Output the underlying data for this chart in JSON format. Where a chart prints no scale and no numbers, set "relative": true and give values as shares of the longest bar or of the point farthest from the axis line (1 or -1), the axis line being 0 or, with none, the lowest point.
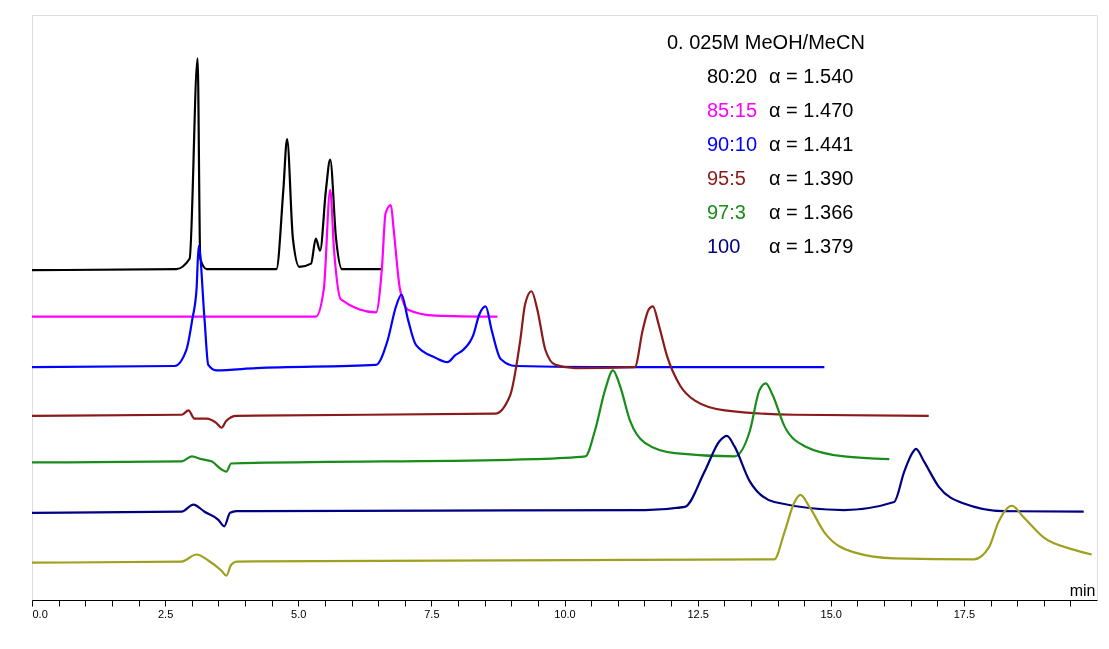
{
  "chart_data": {
    "type": "line",
    "relative": true,
    "legend_title": "0. 025M MeOH/MeCN",
    "xlabel": "min",
    "xlim": [
      0,
      20
    ],
    "xticks": [
      {
        "value": 0,
        "label": "0.0"
      },
      {
        "value": 0.5,
        "label": null
      },
      {
        "value": 1,
        "label": null
      },
      {
        "value": 1.5,
        "label": null
      },
      {
        "value": 2,
        "label": null
      },
      {
        "value": 2.5,
        "label": "2.5"
      },
      {
        "value": 3,
        "label": null
      },
      {
        "value": 3.5,
        "label": null
      },
      {
        "value": 4,
        "label": null
      },
      {
        "value": 4.5,
        "label": null
      },
      {
        "value": 5,
        "label": "5.0"
      },
      {
        "value": 5.5,
        "label": null
      },
      {
        "value": 6,
        "label": null
      },
      {
        "value": 6.5,
        "label": null
      },
      {
        "value": 7,
        "label": null
      },
      {
        "value": 7.5,
        "label": "7.5"
      },
      {
        "value": 8,
        "label": null
      },
      {
        "value": 8.5,
        "label": null
      },
      {
        "value": 9,
        "label": null
      },
      {
        "value": 9.5,
        "label": null
      },
      {
        "value": 10,
        "label": "10.0"
      },
      {
        "value": 10.5,
        "label": null
      },
      {
        "value": 11,
        "label": null
      },
      {
        "value": 11.5,
        "label": null
      },
      {
        "value": 12,
        "label": null
      },
      {
        "value": 12.5,
        "label": "12.5"
      },
      {
        "value": 13,
        "label": null
      },
      {
        "value": 13.5,
        "label": null
      },
      {
        "value": 14,
        "label": null
      },
      {
        "value": 14.5,
        "label": null
      },
      {
        "value": 15,
        "label": "15.0"
      },
      {
        "value": 15.5,
        "label": null
      },
      {
        "value": 16,
        "label": null
      },
      {
        "value": 16.5,
        "label": null
      },
      {
        "value": 17,
        "label": null
      },
      {
        "value": 17.5,
        "label": "17.5"
      },
      {
        "value": 18,
        "label": null
      },
      {
        "value": 18.5,
        "label": null
      },
      {
        "value": 19,
        "label": null
      },
      {
        "value": 19.5,
        "label": null
      }
    ],
    "tick_labels": "x",
    "grid": false,
    "legend": "top right",
    "marker": "none",
    "line_style": "solid",
    "annotations": [
      "α = 1.540",
      "α = 1.470",
      "α = 1.441",
      "α = 1.390",
      "α = 1.366",
      "α = 1.379"
    ],
    "series": [
      {
        "name": "80:20",
        "color": "#000000",
        "x": [
          0.0,
          2.71,
          2.96,
          3.11,
          3.16,
          3.28,
          4.59,
          4.72,
          4.79,
          4.9,
          5.02,
          5.24,
          5.33,
          5.41,
          5.52,
          5.6,
          5.71,
          5.82,
          6.57
        ],
        "values": [
          0.609,
          0.611,
          0.63,
          1.0,
          0.63,
          0.611,
          0.611,
          0.757,
          0.851,
          0.667,
          0.615,
          0.621,
          0.667,
          0.645,
          0.757,
          0.813,
          0.667,
          0.611,
          0.611
        ]
      },
      {
        "name": "85:15",
        "color": "#ff00ff",
        "x": [
          0.0,
          5.33,
          5.48,
          5.6,
          5.67,
          5.8,
          6.46,
          6.57,
          6.64,
          6.74,
          6.79,
          6.91,
          7.06,
          7.58,
          8.74
        ],
        "values": [
          0.523,
          0.523,
          0.574,
          0.757,
          0.649,
          0.555,
          0.531,
          0.611,
          0.714,
          0.729,
          0.686,
          0.574,
          0.536,
          0.525,
          0.523
        ]
      },
      {
        "name": "90:10",
        "color": "#0000ff",
        "x": [
          0.0,
          2.68,
          2.9,
          3.01,
          3.09,
          3.13,
          3.24,
          3.31,
          3.46,
          4.21,
          6.46,
          6.68,
          6.83,
          6.94,
          7.06,
          7.21,
          7.58,
          7.8,
          7.95,
          8.1,
          8.29,
          8.4,
          8.52,
          8.63,
          8.8,
          9.08,
          10.57,
          14.88
        ],
        "values": [
          0.43,
          0.432,
          0.462,
          0.518,
          0.574,
          0.654,
          0.518,
          0.434,
          0.424,
          0.428,
          0.434,
          0.48,
          0.54,
          0.564,
          0.518,
          0.471,
          0.447,
          0.439,
          0.452,
          0.462,
          0.49,
          0.527,
          0.542,
          0.499,
          0.445,
          0.432,
          0.43,
          0.43
        ]
      },
      {
        "name": "95:5",
        "color": "#8b1a1a",
        "x": [
          0.0,
          2.81,
          2.94,
          3.05,
          3.28,
          3.46,
          3.56,
          3.65,
          3.84,
          8.7,
          8.98,
          9.17,
          9.26,
          9.38,
          9.49,
          9.64,
          9.83,
          10.2,
          11.32,
          11.47,
          11.58,
          11.66,
          11.77,
          11.92,
          12.17,
          12.45,
          13.01,
          14.32,
          16.84
        ],
        "values": [
          0.34,
          0.342,
          0.35,
          0.335,
          0.335,
          0.327,
          0.318,
          0.331,
          0.34,
          0.344,
          0.378,
          0.48,
          0.546,
          0.57,
          0.536,
          0.462,
          0.434,
          0.428,
          0.43,
          0.499,
          0.536,
          0.542,
          0.508,
          0.452,
          0.396,
          0.368,
          0.35,
          0.342,
          0.34
        ]
      },
      {
        "name": "97:3",
        "color": "#1a8c1a",
        "x": [
          0.0,
          2.81,
          3.0,
          3.18,
          3.37,
          3.56,
          3.65,
          3.74,
          9.45,
          10.39,
          10.57,
          10.76,
          10.91,
          11.04,
          11.23,
          11.51,
          12.07,
          13.19,
          13.48,
          13.66,
          13.78,
          13.91,
          14.13,
          14.51,
          15.25,
          16.1
        ],
        "values": [
          0.254,
          0.256,
          0.265,
          0.26,
          0.256,
          0.241,
          0.237,
          0.252,
          0.26,
          0.265,
          0.312,
          0.387,
          0.424,
          0.396,
          0.331,
          0.29,
          0.271,
          0.265,
          0.312,
          0.387,
          0.4,
          0.378,
          0.321,
          0.284,
          0.265,
          0.26
        ]
      },
      {
        "name": "100",
        "color": "#000080",
        "x": [
          0.0,
          2.81,
          3.03,
          3.24,
          3.5,
          3.61,
          3.72,
          3.84,
          11.51,
          12.26,
          12.63,
          12.91,
          13.05,
          13.19,
          13.48,
          13.94,
          15.25,
          16.19,
          16.38,
          16.53,
          16.6,
          16.75,
          17.03,
          17.5,
          18.25,
          19.75
        ],
        "values": [
          0.161,
          0.163,
          0.176,
          0.163,
          0.148,
          0.136,
          0.161,
          0.164,
          0.166,
          0.172,
          0.237,
          0.293,
          0.303,
          0.284,
          0.219,
          0.181,
          0.166,
          0.181,
          0.237,
          0.271,
          0.279,
          0.256,
          0.209,
          0.178,
          0.164,
          0.163
        ]
      },
      {
        "color": "#a0a020",
        "x": [
          0.0,
          2.81,
          3.09,
          3.31,
          3.56,
          3.65,
          3.74,
          3.84,
          13.94,
          14.13,
          14.32,
          14.43,
          14.6,
          14.88,
          15.44,
          16.19,
          17.69,
          17.97,
          18.15,
          18.4,
          18.62,
          18.99,
          19.56,
          19.9
        ],
        "values": [
          0.069,
          0.071,
          0.084,
          0.073,
          0.054,
          0.045,
          0.065,
          0.071,
          0.075,
          0.125,
          0.181,
          0.194,
          0.172,
          0.125,
          0.088,
          0.077,
          0.075,
          0.097,
          0.144,
          0.174,
          0.153,
          0.116,
          0.093,
          0.084
        ]
      }
    ]
  }
}
